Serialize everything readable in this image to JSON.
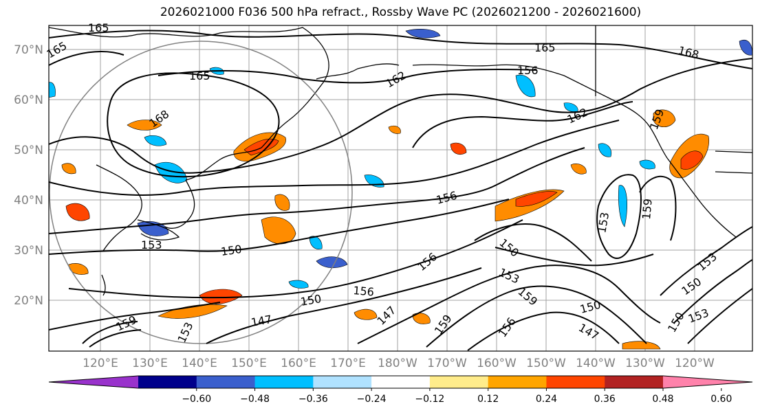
{
  "title": "2026021000 F036 500 hPa refract., Rossby Wave PC (2026021200 - 2026021600)",
  "lat_labels": [
    "70°N",
    "60°N",
    "50°N",
    "40°N",
    "30°N",
    "20°N"
  ],
  "lon_labels": [
    "120°E",
    "130°E",
    "140°E",
    "150°E",
    "160°E",
    "170°E",
    "180°W",
    "170°W",
    "160°W",
    "150°W",
    "140°W",
    "130°W",
    "120°W"
  ],
  "contour_labels": [
    "165",
    "165",
    "165",
    "165",
    "168",
    "168",
    "162",
    "162",
    "159",
    "156",
    "150",
    "153",
    "153",
    "150",
    "156",
    "153",
    "159",
    "156",
    "150",
    "147",
    "150",
    "147",
    "159",
    "156",
    "153",
    "150",
    "159",
    "153",
    "153",
    "150",
    "159",
    "147",
    "156"
  ],
  "colorbar": {
    "colors": [
      "#9932cc",
      "#00008b",
      "#3a5fcd",
      "#00bfff",
      "#b0e2ff",
      "#ffffff",
      "#ffec8b",
      "#ffa500",
      "#ff4500",
      "#b22222",
      "#ff82ab"
    ],
    "ticks": [
      "−0.60",
      "−0.48",
      "−0.36",
      "−0.24",
      "−0.12",
      "0.12",
      "0.24",
      "0.36",
      "0.48",
      "0.60"
    ]
  }
}
